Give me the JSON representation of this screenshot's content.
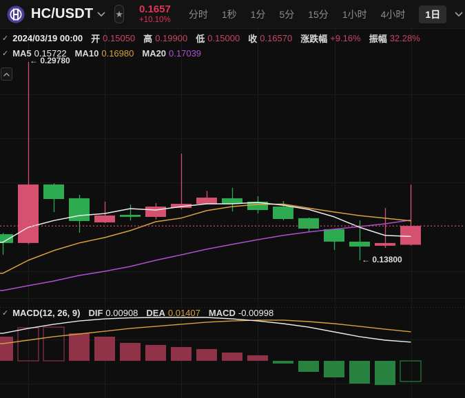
{
  "topbar": {
    "symbol": "HC/USDT",
    "price": "0.1657",
    "change": "+10.10%",
    "intervals": [
      "分时",
      "1秒",
      "1分",
      "5分",
      "15分",
      "1小时",
      "4小时"
    ],
    "selected_interval": "1日",
    "favorite_icon": "star-icon",
    "chart_style_icon": "candlestick-icon"
  },
  "ohlc_row": {
    "date": "2024/03/19 00:00",
    "fields": [
      {
        "label": "开",
        "value": "0.15050"
      },
      {
        "label": "高",
        "value": "0.19900"
      },
      {
        "label": "低",
        "value": "0.15000"
      },
      {
        "label": "收",
        "value": "0.16570"
      },
      {
        "label": "涨跌幅",
        "value": "+9.16%"
      },
      {
        "label": "振幅",
        "value": "32.28%"
      }
    ]
  },
  "ma_row": {
    "items": [
      {
        "label": "MA5",
        "value": "0.15722"
      },
      {
        "label": "MA10",
        "value": "0.16980"
      },
      {
        "label": "MA20",
        "value": "0.17039"
      }
    ]
  },
  "macd_row": {
    "title": "MACD(12, 26, 9)",
    "items": [
      {
        "label": "DIF",
        "value": "0.00908"
      },
      {
        "label": "DEA",
        "value": "0.01407"
      },
      {
        "label": "MACD",
        "value": "-0.00998"
      }
    ]
  },
  "annotations": [
    {
      "text": "← 0.29780",
      "target": "high"
    },
    {
      "text": "← 0.13800",
      "target": "low"
    }
  ],
  "colors": {
    "up": "#d6506f",
    "down": "#2cab51",
    "price_line": "#e0476b",
    "ma5": "#ededed",
    "ma10": "#d9a23c",
    "ma20": "#b04fd0",
    "hist_up": "#903349",
    "hist_dn": "#27813f",
    "accent_red": "#e13556",
    "muted_red": "#c74566",
    "grid": "#1b1b1b",
    "divider": "#343434"
  },
  "chart_data": {
    "type": "candlestick",
    "color_convention": "red-up-green-down",
    "current_price": 0.1657,
    "high_annotation": 0.2978,
    "low_annotation": 0.138,
    "candles": [
      {
        "o": 0.159,
        "h": 0.16,
        "l": 0.1424,
        "c": 0.1519
      },
      {
        "o": 0.1519,
        "h": 0.2978,
        "l": 0.151,
        "c": 0.1991
      },
      {
        "o": 0.1991,
        "h": 0.2,
        "l": 0.1769,
        "c": 0.1874
      },
      {
        "o": 0.188,
        "h": 0.1907,
        "l": 0.1602,
        "c": 0.1696
      },
      {
        "o": 0.1685,
        "h": 0.1852,
        "l": 0.168,
        "c": 0.1741
      },
      {
        "o": 0.1746,
        "h": 0.183,
        "l": 0.17,
        "c": 0.173
      },
      {
        "o": 0.173,
        "h": 0.184,
        "l": 0.171,
        "c": 0.1813
      },
      {
        "o": 0.1802,
        "h": 0.224,
        "l": 0.179,
        "c": 0.1835
      },
      {
        "o": 0.1835,
        "h": 0.194,
        "l": 0.183,
        "c": 0.1885
      },
      {
        "o": 0.188,
        "h": 0.1963,
        "l": 0.1774,
        "c": 0.1835
      },
      {
        "o": 0.1852,
        "h": 0.1896,
        "l": 0.1757,
        "c": 0.1785
      },
      {
        "o": 0.1813,
        "h": 0.1857,
        "l": 0.1702,
        "c": 0.1713
      },
      {
        "o": 0.1719,
        "h": 0.1725,
        "l": 0.1613,
        "c": 0.1635
      },
      {
        "o": 0.163,
        "h": 0.1635,
        "l": 0.1463,
        "c": 0.153
      },
      {
        "o": 0.153,
        "h": 0.1702,
        "l": 0.138,
        "c": 0.1491
      },
      {
        "o": 0.1497,
        "h": 0.1802,
        "l": 0.148,
        "c": 0.1519
      },
      {
        "o": 0.1505,
        "h": 0.199,
        "l": 0.15,
        "c": 0.1657
      }
    ],
    "overlays": {
      "ma5": [
        0.1525,
        0.1646,
        0.17,
        0.174,
        0.1757,
        0.1796,
        0.1785,
        0.1813,
        0.1835,
        0.1835,
        0.1846,
        0.1824,
        0.179,
        0.173,
        0.1646,
        0.158,
        0.15722
      ],
      "ma10": [
        0.1275,
        0.138,
        0.1458,
        0.152,
        0.1563,
        0.1619,
        0.1691,
        0.172,
        0.178,
        0.1813,
        0.183,
        0.1833,
        0.18,
        0.1769,
        0.174,
        0.1719,
        0.1698
      ],
      "ma20": [
        0.1136,
        0.1175,
        0.1213,
        0.1258,
        0.1291,
        0.133,
        0.138,
        0.1424,
        0.1469,
        0.1508,
        0.1546,
        0.158,
        0.1608,
        0.163,
        0.1652,
        0.1674,
        0.17039
      ]
    },
    "macd": {
      "params": [
        12,
        26,
        9
      ],
      "dif": [
        0.0133,
        0.0157,
        0.0177,
        0.0193,
        0.0203,
        0.0208,
        0.021,
        0.021,
        0.021,
        0.0203,
        0.0193,
        0.018,
        0.0163,
        0.014,
        0.0117,
        0.01,
        0.00908
      ],
      "dea": [
        0.0083,
        0.01,
        0.0117,
        0.013,
        0.0143,
        0.0157,
        0.0167,
        0.0177,
        0.0187,
        0.0193,
        0.0197,
        0.0197,
        0.019,
        0.018,
        0.0167,
        0.0153,
        0.01407
      ],
      "hist": [
        {
          "v": 0.0117,
          "hollow": false
        },
        {
          "v": 0.016,
          "hollow": true
        },
        {
          "v": 0.0163,
          "hollow": true
        },
        {
          "v": 0.0133,
          "hollow": false
        },
        {
          "v": 0.0117,
          "hollow": false
        },
        {
          "v": 0.0087,
          "hollow": false
        },
        {
          "v": 0.0077,
          "hollow": false
        },
        {
          "v": 0.0067,
          "hollow": false
        },
        {
          "v": 0.0057,
          "hollow": false
        },
        {
          "v": 0.004,
          "hollow": false
        },
        {
          "v": 0.0027,
          "hollow": false
        },
        {
          "v": -0.0013,
          "hollow": false
        },
        {
          "v": -0.0053,
          "hollow": false
        },
        {
          "v": -0.008,
          "hollow": false
        },
        {
          "v": -0.011,
          "hollow": false
        },
        {
          "v": -0.0117,
          "hollow": false
        },
        {
          "v": -0.00998,
          "hollow": true
        }
      ]
    },
    "layout": {
      "x0": 4,
      "dx": 37,
      "body_w": 30,
      "main": {
        "top": 80,
        "bottom": 445,
        "ylim": [
          0.1008,
          0.3034
        ]
      },
      "macd_pane": {
        "top": 455,
        "bottom": 570,
        "ylim": [
          -0.0153,
          0.023
        ]
      },
      "vgrid": [
        41,
        152,
        263,
        374,
        486,
        597
      ],
      "hgrid": [
        137,
        201,
        265,
        394,
        433,
        493,
        557
      ],
      "pane_divider_y": 446
    }
  }
}
